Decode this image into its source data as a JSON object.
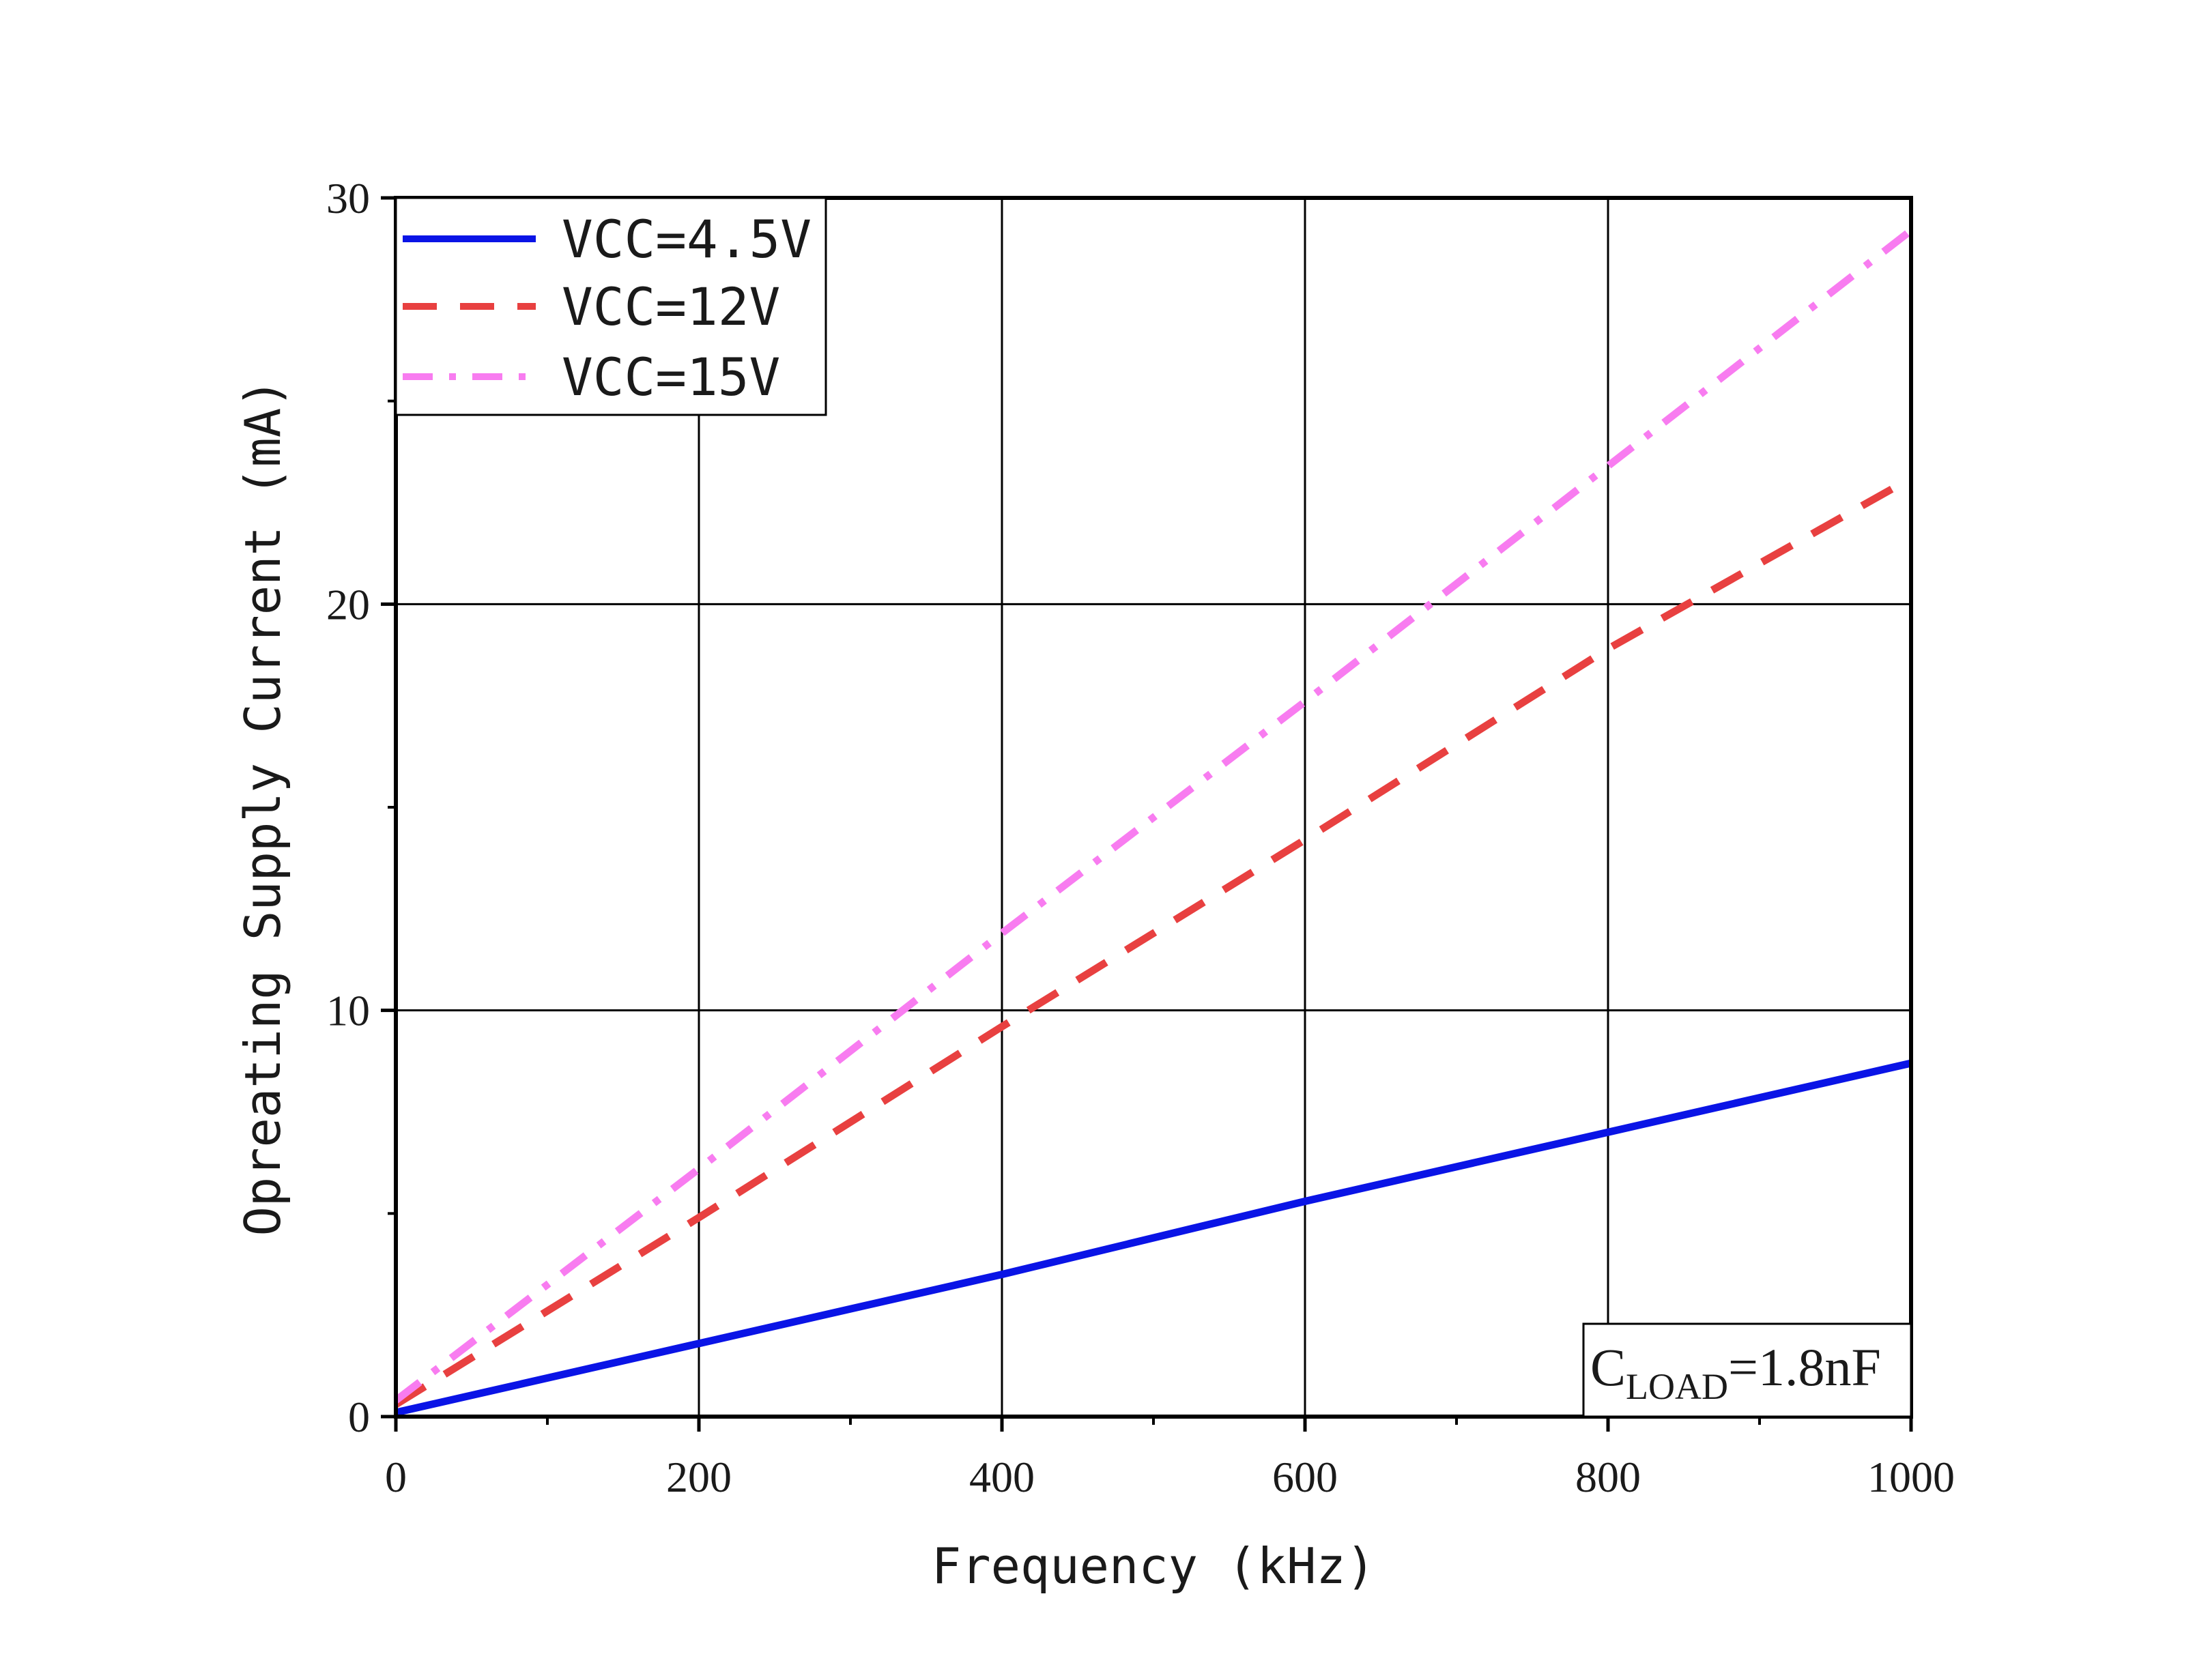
{
  "chart_data": {
    "type": "line",
    "title": "",
    "xlabel": "Frequency (kHz)",
    "ylabel": "Opreating Supply Current (mA)",
    "xlim": [
      0,
      1000
    ],
    "ylim": [
      0,
      30
    ],
    "x_ticks": [
      0,
      200,
      400,
      600,
      800,
      1000
    ],
    "y_ticks": [
      0,
      10,
      20,
      30
    ],
    "grid": true,
    "legend_position": "top-left",
    "series": [
      {
        "name": "VCC=4.5V",
        "color": "#0a14e6",
        "style": "solid",
        "x": [
          0,
          200,
          400,
          600,
          800,
          1000
        ],
        "y": [
          0.1,
          1.8,
          3.5,
          5.3,
          7.0,
          8.7
        ]
      },
      {
        "name": "VCC=12V",
        "color": "#e84040",
        "style": "dash",
        "x": [
          0,
          200,
          400,
          600,
          800,
          1000
        ],
        "y": [
          0.3,
          4.9,
          9.6,
          14.2,
          18.9,
          23.1
        ]
      },
      {
        "name": "VCC=15V",
        "color": "#f87cf0",
        "style": "dashdot",
        "x": [
          0,
          200,
          400,
          600,
          800,
          1000
        ],
        "y": [
          0.4,
          6.1,
          11.9,
          17.6,
          23.4,
          29.2
        ]
      }
    ],
    "annotation": {
      "main": "C",
      "sub": "LOAD",
      "value": "=1.8nF"
    }
  }
}
